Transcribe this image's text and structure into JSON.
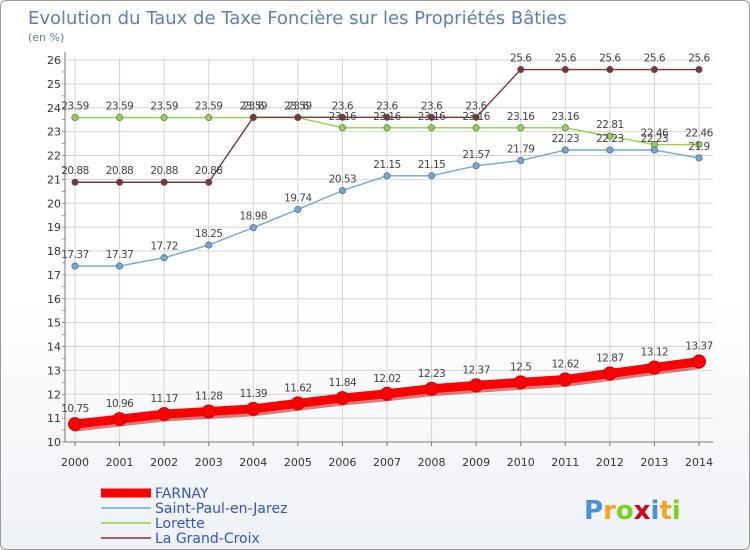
{
  "chart_data": {
    "type": "line",
    "title": "Evolution du Taux de Taxe Foncière sur les Propriétés Bâties",
    "ylabel": "(en %)",
    "xlabel": "",
    "x": [
      2000,
      2001,
      2002,
      2003,
      2004,
      2005,
      2006,
      2007,
      2008,
      2009,
      2010,
      2011,
      2012,
      2013,
      2014
    ],
    "ylim": [
      10,
      26
    ],
    "yticks": [
      10,
      11,
      12,
      13,
      14,
      15,
      16,
      17,
      18,
      19,
      20,
      21,
      22,
      23,
      24,
      25,
      26
    ],
    "series": [
      {
        "name": "FARNAY",
        "color": "#ff0000",
        "values": [
          10.75,
          10.96,
          11.17,
          11.28,
          11.39,
          11.62,
          11.84,
          12.02,
          12.23,
          12.37,
          12.5,
          12.62,
          12.87,
          13.12,
          13.37
        ],
        "labels": [
          "10.75",
          "10.96",
          "11.17",
          "11.28",
          "11.39",
          "11.62",
          "11.84",
          "12.02",
          "12.23",
          "12.37",
          "12.5",
          "12.62",
          "12.87",
          "13.12",
          "13.37"
        ]
      },
      {
        "name": "Saint-Paul-en-Jarez",
        "color": "#6fa8dc",
        "values": [
          17.37,
          17.37,
          17.72,
          18.25,
          18.98,
          19.74,
          20.53,
          21.15,
          21.15,
          21.57,
          21.79,
          22.23,
          22.23,
          22.23,
          21.9
        ],
        "labels": [
          "17.37",
          "17.37",
          "17.72",
          "18.25",
          "18.98",
          "19.74",
          "20.53",
          "21.15",
          "21.15",
          "21.57",
          "21.79",
          "22.23",
          "22.23",
          "22.23",
          "21.9"
        ]
      },
      {
        "name": "Lorette",
        "color": "#8ed44a",
        "values": [
          23.59,
          23.59,
          23.59,
          23.59,
          23.59,
          23.59,
          23.16,
          23.16,
          23.16,
          23.16,
          23.16,
          23.16,
          22.81,
          22.46,
          22.46
        ],
        "labels": [
          "23.59",
          "23.59",
          "23.59",
          "23.59",
          "23.59",
          "23.59",
          "23.16",
          "23.16",
          "23.16",
          "23.16",
          "23.16",
          "23.16",
          "22.81",
          "22.46",
          "22.46"
        ]
      },
      {
        "name": "La Grand-Croix",
        "color": "#7b3535",
        "values": [
          20.88,
          20.88,
          20.88,
          20.88,
          23.6,
          23.6,
          23.6,
          23.6,
          23.6,
          23.6,
          25.6,
          25.6,
          25.6,
          25.6,
          25.6
        ],
        "labels": [
          "20.88",
          "20.88",
          "20.88",
          "20.88",
          "23.6",
          "23.6",
          "23.6",
          "23.6",
          "23.6",
          "23.6",
          "25.6",
          "25.6",
          "25.6",
          "25.6",
          "25.6"
        ]
      }
    ],
    "legend_position": "bottom-left",
    "grid": true
  },
  "branding": {
    "logo_text": "Proxiti",
    "colors": [
      "#4a90d9",
      "#f5a623",
      "#7ed321",
      "#d0021b"
    ]
  },
  "colors": {
    "title": "#5b7fb6",
    "axis_text": "#333333",
    "grid": "#d4d4d4",
    "axis": "#777777",
    "legend_text": "#3355cc"
  }
}
